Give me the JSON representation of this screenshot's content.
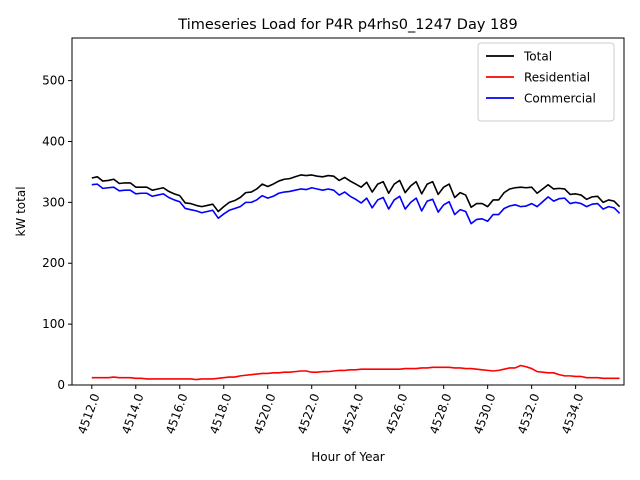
{
  "chart_data": {
    "type": "line",
    "title": "Timeseries Load for P4R p4rhs0_1247  Day 189",
    "xlabel": "Hour of Year",
    "ylabel": "kW total",
    "xlim": [
      4511.1,
      4536.2
    ],
    "ylim": [
      0,
      570
    ],
    "x_ticks": [
      4512,
      4514,
      4516,
      4518,
      4520,
      4522,
      4524,
      4526,
      4528,
      4530,
      4532,
      4534
    ],
    "x_tick_labels": [
      "4512.0",
      "4514.0",
      "4516.0",
      "4518.0",
      "4520.0",
      "4522.0",
      "4524.0",
      "4526.0",
      "4528.0",
      "4530.0",
      "4532.0",
      "4534.0"
    ],
    "y_ticks": [
      0,
      100,
      200,
      300,
      400,
      500
    ],
    "y_tick_labels": [
      "0",
      "100",
      "200",
      "300",
      "400",
      "500"
    ],
    "legend_position": "top-right",
    "x_start": 4512.0,
    "x_step": 0.25,
    "series": [
      {
        "name": "Total",
        "color": "#000000",
        "values": [
          340,
          342,
          335,
          336,
          338,
          331,
          332,
          332,
          325,
          325,
          325,
          320,
          322,
          324,
          318,
          314,
          311,
          299,
          298,
          295,
          293,
          295,
          297,
          285,
          293,
          300,
          303,
          308,
          316,
          317,
          322,
          330,
          326,
          330,
          335,
          338,
          339,
          342,
          345,
          344,
          345,
          343,
          342,
          344,
          343,
          336,
          341,
          335,
          330,
          325,
          333,
          317,
          330,
          334,
          315,
          330,
          336,
          316,
          327,
          334,
          314,
          330,
          334,
          313,
          325,
          330,
          308,
          316,
          312,
          292,
          298,
          298,
          293,
          304,
          304,
          316,
          322,
          324,
          325,
          324,
          325,
          315,
          322,
          329,
          322,
          323,
          322,
          313,
          314,
          312,
          305,
          309,
          310,
          300,
          304,
          302,
          293
        ]
      },
      {
        "name": "Residential",
        "color": "#ff0000",
        "values": [
          12,
          12,
          12,
          12,
          13,
          12,
          12,
          12,
          11,
          11,
          10,
          10,
          10,
          10,
          10,
          10,
          10,
          10,
          10,
          9,
          10,
          10,
          10,
          11,
          12,
          13,
          13,
          15,
          16,
          17,
          18,
          19,
          19,
          20,
          20,
          21,
          21,
          22,
          23,
          23,
          21,
          21,
          22,
          22,
          23,
          24,
          24,
          25,
          25,
          26,
          26,
          26,
          26,
          26,
          26,
          26,
          26,
          27,
          27,
          27,
          28,
          28,
          29,
          29,
          29,
          29,
          28,
          28,
          27,
          27,
          26,
          25,
          24,
          23,
          24,
          26,
          28,
          28,
          32,
          30,
          27,
          22,
          21,
          20,
          20,
          17,
          15,
          15,
          14,
          14,
          12,
          12,
          12,
          11,
          11,
          11,
          11
        ]
      },
      {
        "name": "Commercial",
        "color": "#0000ff",
        "values": [
          329,
          330,
          323,
          324,
          325,
          319,
          320,
          320,
          314,
          315,
          315,
          310,
          312,
          314,
          308,
          304,
          301,
          290,
          288,
          286,
          283,
          285,
          287,
          274,
          281,
          287,
          290,
          293,
          300,
          300,
          304,
          311,
          307,
          310,
          315,
          317,
          318,
          320,
          322,
          321,
          324,
          322,
          320,
          322,
          320,
          312,
          317,
          310,
          305,
          299,
          307,
          291,
          304,
          308,
          289,
          304,
          310,
          289,
          300,
          307,
          286,
          302,
          305,
          284,
          296,
          301,
          280,
          288,
          285,
          265,
          272,
          273,
          269,
          280,
          280,
          290,
          294,
          296,
          293,
          294,
          298,
          293,
          301,
          309,
          302,
          306,
          307,
          298,
          300,
          298,
          293,
          297,
          298,
          289,
          293,
          291,
          282
        ]
      }
    ]
  }
}
